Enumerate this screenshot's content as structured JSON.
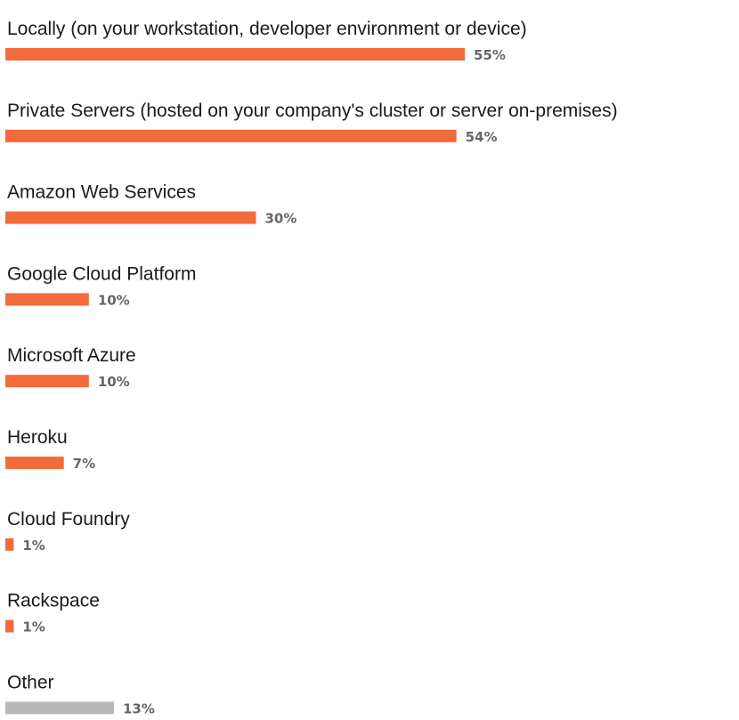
{
  "chart_data": {
    "type": "bar",
    "orientation": "horizontal",
    "categories": [
      "Locally (on your workstation, developer environment or device)",
      "Private Servers (hosted on your company's cluster or server on-premises)",
      "Amazon Web Services",
      "Google Cloud Platform",
      "Microsoft Azure",
      "Heroku",
      "Cloud Foundry",
      "Rackspace",
      "Other"
    ],
    "values": [
      55,
      54,
      30,
      10,
      10,
      7,
      1,
      1,
      13
    ],
    "value_labels": [
      "55%",
      "54%",
      "30%",
      "10%",
      "10%",
      "7%",
      "1%",
      "1%",
      "13%"
    ],
    "bar_colors": [
      "#f26b3a",
      "#f26b3a",
      "#f26b3a",
      "#f26b3a",
      "#f26b3a",
      "#f26b3a",
      "#f26b3a",
      "#f26b3a",
      "#b8b8b8"
    ],
    "value_label_color": "#666666",
    "label_color": "#1a1a1a",
    "title": "",
    "xlabel": "",
    "ylabel": "",
    "xlim": [
      0,
      55
    ],
    "grid": false,
    "legend": "none"
  }
}
